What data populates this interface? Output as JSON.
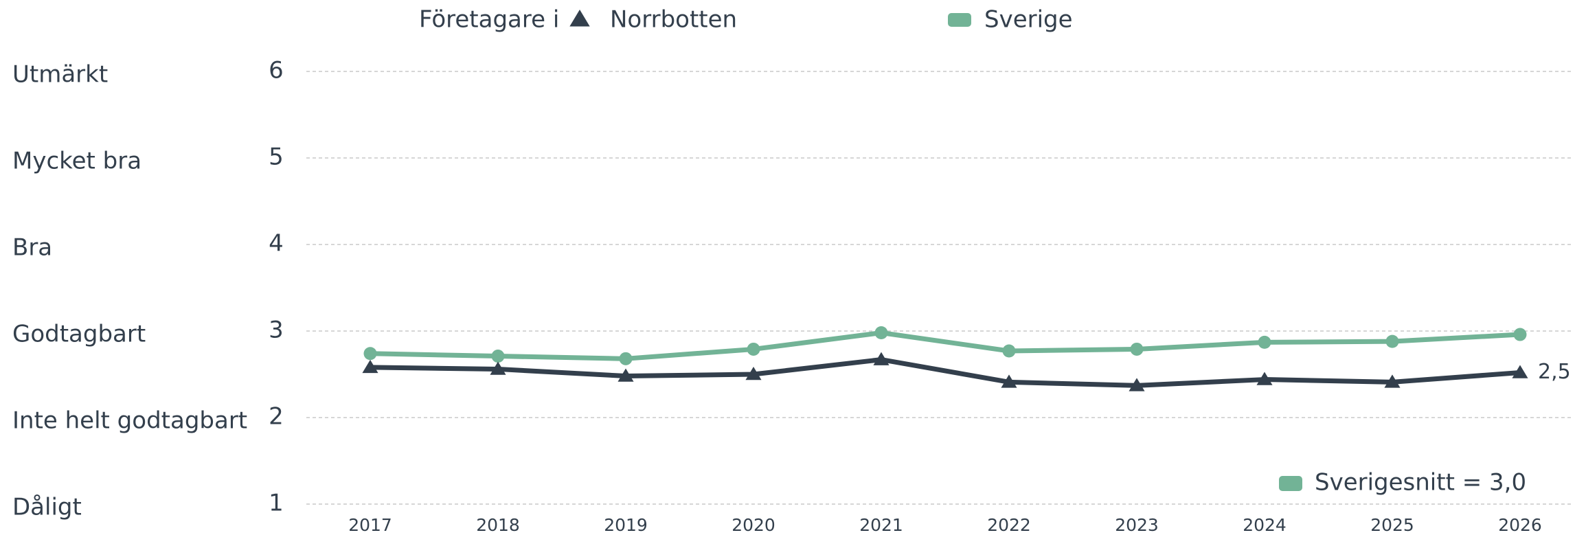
{
  "chart_data": {
    "type": "line",
    "legend_title": "Företagare i",
    "categories": [
      "2017",
      "2018",
      "2019",
      "2020",
      "2021",
      "2022",
      "2023",
      "2024",
      "2025",
      "2026"
    ],
    "series": [
      {
        "name": "Norrbotten",
        "color": "#333f4c",
        "marker": "triangle",
        "values": [
          2.58,
          2.56,
          2.48,
          2.5,
          2.67,
          2.41,
          2.37,
          2.44,
          2.41,
          2.52
        ],
        "value_labels": [
          null,
          null,
          null,
          null,
          null,
          null,
          null,
          null,
          null,
          "2,5"
        ]
      },
      {
        "name": "Sverige",
        "color": "#72b396",
        "marker": "circle",
        "values": [
          2.74,
          2.71,
          2.68,
          2.79,
          2.98,
          2.77,
          2.79,
          2.87,
          2.88,
          2.96
        ]
      }
    ],
    "ylim": [
      1,
      6
    ],
    "yticks": [
      1,
      2,
      3,
      4,
      5,
      6
    ],
    "ytick_descriptions": [
      "Dåligt",
      "Inte helt godtagbart",
      "Godtagbart",
      "Bra",
      "Mycket bra",
      "Utmärkt"
    ],
    "grid": true,
    "annotation": {
      "text": "Sverigesnitt = 3,0",
      "color": "#72b396"
    }
  }
}
